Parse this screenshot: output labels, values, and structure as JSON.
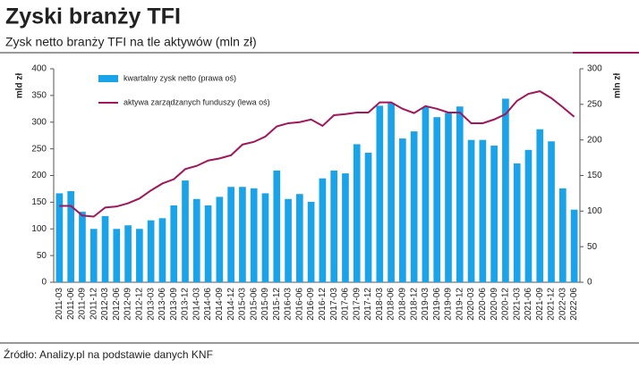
{
  "chart_data": {
    "type": "bar-line",
    "title": "Zyski branży TFI",
    "subtitle": "Zysk netto branży TFI na tle aktywów (mln zł)",
    "ylabel": "mld zł",
    "y2label": "mln zł",
    "source": "Źródło: Analizy.pl na podstawie danych KNF",
    "categories": [
      "2011-03",
      "2011-06",
      "2011-09",
      "2011-12",
      "2012-03",
      "2012-06",
      "2012-09",
      "2012-12",
      "2013-03",
      "2013-06",
      "2013-09",
      "2013-12",
      "2014-03",
      "2014-06",
      "2014-09",
      "2014-12",
      "2015-03",
      "2015-06",
      "2015-09",
      "2015-12",
      "2016-03",
      "2016-06",
      "2016-09",
      "2016-12",
      "2017-03",
      "2017-06",
      "2017-09",
      "2017-12",
      "2018-03",
      "2018-06",
      "2018-09",
      "2018-12",
      "2019-03",
      "2019-06",
      "2019-09",
      "2019-12",
      "2020-03",
      "2020-06",
      "2020-09",
      "2020-12",
      "2021-03",
      "2021-06",
      "2021-09",
      "2021-12",
      "2022-03",
      "2022-06"
    ],
    "series": [
      {
        "name": "kwartalny zysk netto (prawa oś)",
        "type": "bar",
        "axis": "y2",
        "color": "#1aa3e8",
        "values": [
          125,
          128,
          99,
          75,
          93,
          75,
          80,
          75,
          87,
          90,
          108,
          143,
          117,
          108,
          120,
          134,
          134,
          132,
          125,
          157,
          117,
          124,
          113,
          146,
          157,
          153,
          194,
          182,
          248,
          252,
          202,
          212,
          246,
          232,
          238,
          247,
          200,
          200,
          192,
          258,
          167,
          186,
          215,
          198,
          132,
          102
        ]
      },
      {
        "name": "aktywa zarządzanych funduszy (lewa oś)",
        "type": "line",
        "axis": "y",
        "color": "#a0175a",
        "values": [
          143,
          143,
          125,
          123,
          140,
          142,
          148,
          157,
          172,
          185,
          193,
          212,
          218,
          228,
          232,
          238,
          258,
          263,
          273,
          292,
          298,
          300,
          305,
          293,
          313,
          315,
          318,
          318,
          337,
          337,
          325,
          317,
          330,
          325,
          318,
          318,
          298,
          298,
          305,
          315,
          340,
          353,
          358,
          345,
          328,
          310
        ]
      }
    ],
    "ylim": [
      0,
      400
    ],
    "yticks": [
      0,
      50,
      100,
      150,
      200,
      250,
      300,
      350,
      400
    ],
    "y2lim": [
      0,
      300
    ],
    "y2ticks": [
      0,
      50,
      100,
      150,
      200,
      250,
      300
    ]
  }
}
